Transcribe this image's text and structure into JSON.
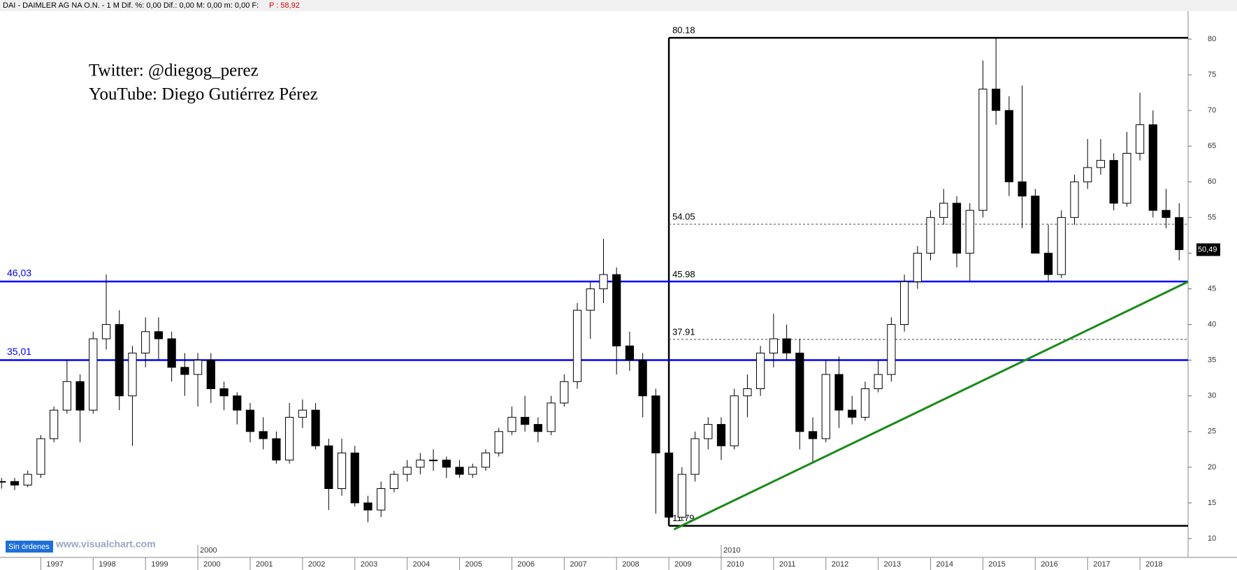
{
  "chart_data": {
    "type": "candlestick",
    "title": "DAI - DAIMLER AG NA O.N. -  1 M  Dif. %: 0,00  Dif.: 0,00  M: 0,00  m: 0,00  F:",
    "price_label": "P : 58,92",
    "annotations": [
      "Twitter: @diegog_perez",
      "YouTube: Diego Gutiérrez Pérez"
    ],
    "status": "Sin órdenes",
    "watermark": "www.visualchart.com",
    "x": [
      1996.25,
      1996.5,
      1996.75,
      1997,
      1997.25,
      1997.5,
      1997.75,
      1998,
      1998.25,
      1998.5,
      1998.75,
      1999,
      1999.25,
      1999.5,
      1999.75,
      2000,
      2000.25,
      2000.5,
      2000.75,
      2001,
      2001.25,
      2001.5,
      2001.75,
      2002,
      2002.25,
      2002.5,
      2002.75,
      2003,
      2003.25,
      2003.5,
      2003.75,
      2004,
      2004.25,
      2004.5,
      2004.75,
      2005,
      2005.25,
      2005.5,
      2005.75,
      2006,
      2006.25,
      2006.5,
      2006.75,
      2007,
      2007.25,
      2007.5,
      2007.75,
      2008,
      2008.25,
      2008.5,
      2008.75,
      2009,
      2009.25,
      2009.5,
      2009.75,
      2010,
      2010.25,
      2010.5,
      2010.75,
      2011,
      2011.25,
      2011.5,
      2011.75,
      2012,
      2012.25,
      2012.5,
      2012.75,
      2013,
      2013.25,
      2013.5,
      2013.75,
      2014,
      2014.25,
      2014.5,
      2014.75,
      2015,
      2015.25,
      2015.5,
      2015.75,
      2016,
      2016.25,
      2016.5,
      2016.75,
      2017,
      2017.25,
      2017.5,
      2017.75,
      2018,
      2018.25,
      2018.5,
      2018.75
    ],
    "open": [
      18,
      18,
      17.5,
      19,
      24,
      28,
      32,
      28,
      38,
      40,
      30,
      36,
      39,
      38,
      34,
      33,
      35,
      31,
      30,
      28,
      25,
      24,
      21,
      27,
      28,
      23,
      17,
      22,
      15,
      14,
      17,
      19,
      20,
      21,
      21,
      20,
      19,
      20,
      22,
      25,
      27,
      26,
      25,
      29,
      32,
      42,
      45,
      47,
      37,
      35,
      30,
      22,
      13,
      19,
      24,
      26,
      23,
      30,
      31,
      36,
      38,
      36,
      25,
      24,
      33,
      28,
      27,
      31,
      33,
      40,
      46,
      50,
      55,
      57,
      50,
      56,
      73,
      70,
      60,
      58,
      50,
      47,
      55,
      60,
      62,
      63,
      57,
      64,
      68,
      56,
      55
    ],
    "high": [
      18.5,
      18.5,
      19.5,
      24.5,
      28.5,
      35,
      33,
      39,
      47,
      42,
      37,
      41,
      41,
      39,
      36,
      36,
      36,
      32,
      30.5,
      29,
      27,
      25,
      29,
      29.5,
      29,
      24,
      24,
      23,
      16,
      18,
      19.5,
      21,
      22,
      22.5,
      21.5,
      21,
      20.5,
      22.5,
      25.5,
      28.5,
      30,
      27,
      30,
      33,
      43,
      46,
      52,
      48,
      39,
      36,
      31,
      23,
      20,
      25,
      27,
      27,
      31,
      33,
      37,
      41.5,
      40,
      38,
      27,
      35,
      35.5,
      30,
      32,
      35,
      41,
      47,
      51,
      56,
      59,
      58,
      57,
      77,
      80.18,
      72,
      73.5,
      59,
      54,
      56,
      61,
      66,
      66,
      64,
      67,
      72.5,
      70,
      59,
      57
    ],
    "low": [
      17,
      16.8,
      17.2,
      18.5,
      23.5,
      27.5,
      23.5,
      27.5,
      36.5,
      28,
      23,
      34,
      35,
      32,
      30,
      28.5,
      29,
      28,
      26,
      23.5,
      22.5,
      20.5,
      20.5,
      25.5,
      22.5,
      14,
      16,
      14.5,
      12.3,
      13,
      16.5,
      18,
      19,
      19.5,
      18.5,
      18.5,
      18.5,
      19.5,
      21.5,
      24.5,
      25,
      23.5,
      24.5,
      28.5,
      31,
      38,
      43,
      33,
      33.5,
      27,
      13.5,
      11.79,
      12.5,
      18,
      22.5,
      21,
      22.5,
      27,
      30,
      34,
      35,
      22.5,
      20.5,
      23.5,
      25.5,
      26,
      26.5,
      30.5,
      32,
      39,
      45,
      49,
      54,
      48,
      46,
      55,
      68,
      58,
      53.5,
      50,
      46,
      46.5,
      54,
      59,
      61,
      56,
      56.5,
      63,
      55,
      53.5,
      49
    ],
    "close": [
      18,
      17.5,
      19,
      24,
      28,
      32,
      28,
      38,
      40,
      30,
      36,
      39,
      38,
      34,
      33,
      35,
      31,
      30,
      28,
      25,
      24,
      21,
      27,
      28,
      23,
      17,
      22,
      15,
      14,
      17,
      19,
      20,
      21,
      21,
      20,
      19,
      20,
      22,
      25,
      27,
      26,
      25,
      29,
      32,
      42,
      45,
      47,
      37,
      35,
      30,
      22,
      13,
      19,
      24,
      26,
      23,
      30,
      31,
      36,
      38,
      36,
      25,
      24,
      33,
      28,
      27,
      31,
      33,
      40,
      46,
      50,
      55,
      57,
      50,
      56,
      73,
      70,
      60,
      58,
      50,
      47,
      55,
      60,
      62,
      63,
      57,
      64,
      68,
      56,
      55,
      50.49
    ],
    "xlim": [
      1996.22,
      2018.92
    ],
    "xticks": [
      1997,
      1998,
      1999,
      2000,
      2001,
      2002,
      2003,
      2004,
      2005,
      2006,
      2007,
      2008,
      2009,
      2010,
      2011,
      2012,
      2013,
      2014,
      2015,
      2016,
      2017,
      2018
    ],
    "era_ticks": [
      2000,
      2010
    ],
    "ylim": [
      10,
      80
    ],
    "yticks": [
      10,
      15,
      20,
      25,
      30,
      35,
      40,
      45,
      50,
      55,
      60,
      65,
      70,
      75,
      80
    ],
    "levels": [
      {
        "value": 46.03,
        "label": "46,03"
      },
      {
        "value": 35.01,
        "label": "35,01"
      }
    ],
    "level_color": "#0000ff",
    "range_box": {
      "x_start": 2009,
      "high": 80.18,
      "low": 11.79,
      "retracements": [
        54.05,
        45.98,
        37.91
      ]
    },
    "trendline": {
      "x": [
        2009.1,
        2018.92
      ],
      "y": [
        11.3,
        46.0
      ],
      "color": "#1a8a1a"
    },
    "last_price": {
      "value": 50.49,
      "label": "50,49"
    }
  }
}
